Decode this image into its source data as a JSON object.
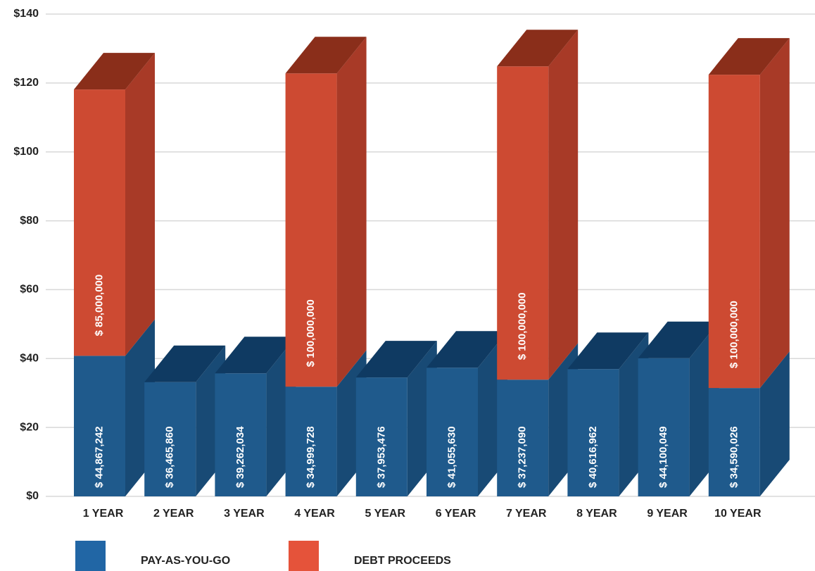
{
  "chart_data": {
    "type": "bar3d_stacked",
    "categories": [
      "1 YEAR",
      "2 YEAR",
      "3 YEAR",
      "4 YEAR",
      "5 YEAR",
      "6 YEAR",
      "7 YEAR",
      "8 YEAR",
      "9 YEAR",
      "10 YEAR"
    ],
    "series": [
      {
        "name": "PAY-AS-YOU-GO",
        "color": "#2166a5",
        "values": [
          44.867242,
          36.46586,
          39.262034,
          34.999728,
          37.953476,
          41.05563,
          37.23709,
          40.616962,
          44.100049,
          34.590026
        ],
        "value_labels": [
          "$ 44,867,242",
          "$ 36,465,860",
          "$ 39,262,034",
          "$ 34,999,728",
          "$ 37,953,476",
          "$ 41,055,630",
          "$ 37,237,090",
          "$ 40,616,962",
          "$ 44,100,049",
          "$ 34,590,026"
        ]
      },
      {
        "name": "DEBT PROCEEDS",
        "color": "#e5533a",
        "values": [
          85,
          null,
          null,
          100,
          null,
          null,
          100,
          null,
          null,
          100
        ],
        "value_labels": [
          "$ 85,000,000",
          null,
          null,
          "$ 100,000,000",
          null,
          null,
          "$ 100,000,000",
          null,
          null,
          "$ 100,000,000"
        ]
      }
    ],
    "ylim": [
      0,
      140
    ],
    "yticks": [
      {
        "value": 0,
        "label": "$0"
      },
      {
        "value": 20,
        "label": "$20"
      },
      {
        "value": 40,
        "label": "$40"
      },
      {
        "value": 60,
        "label": "$60"
      },
      {
        "value": 80,
        "label": "$80"
      },
      {
        "value": 100,
        "label": "$100"
      },
      {
        "value": 120,
        "label": "$120"
      },
      {
        "value": 140,
        "label": "$140"
      }
    ],
    "grid": true
  }
}
